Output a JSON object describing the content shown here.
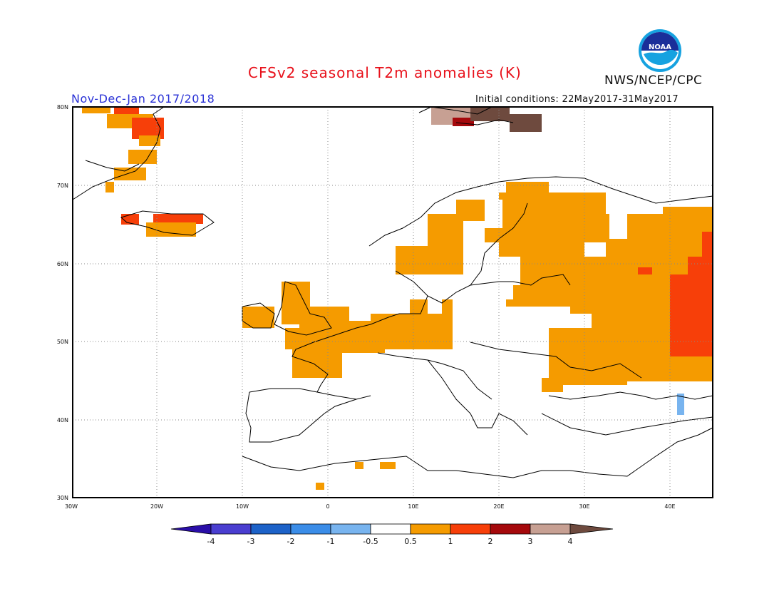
{
  "header": {
    "title": "CFSv2 seasonal T2m anomalies (K)",
    "period": "Nov-Dec-Jan 2017/2018",
    "initial_conditions": "Initial conditions: 22May2017-31May2017",
    "agency": "NWS/NCEP/CPC",
    "logo_text": "NOAA"
  },
  "map": {
    "lon_range": [
      -30,
      45
    ],
    "lat_range": [
      30,
      80
    ],
    "lon_ticks": [
      "30W",
      "20W",
      "10W",
      "0",
      "10E",
      "20E",
      "30E",
      "40E"
    ],
    "lat_ticks": [
      "80N",
      "70N",
      "60N",
      "50N",
      "40N",
      "30N"
    ],
    "gridlines": "dotted"
  },
  "colorbar": {
    "labels": [
      "-4",
      "-3",
      "-2",
      "-1",
      "-0.5",
      "0.5",
      "1",
      "2",
      "3",
      "4"
    ],
    "colors": [
      "#2a0ea8",
      "#4a3ed0",
      "#1d62c8",
      "#3b8de8",
      "#78b4ef",
      "#ffffff",
      "#f59b00",
      "#f73f09",
      "#a5090c",
      "#c7a093",
      "#6e4a3e"
    ]
  }
}
